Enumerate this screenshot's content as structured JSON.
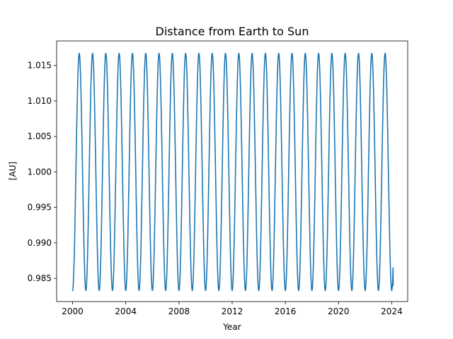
{
  "chart_data": {
    "type": "line",
    "title": "Distance from Earth to Sun",
    "xlabel": "Year",
    "ylabel": "[AU]",
    "xlim": [
      1998.8,
      2025.2
    ],
    "ylim": [
      0.98173,
      1.01845
    ],
    "xticks": [
      2000,
      2004,
      2008,
      2012,
      2016,
      2020,
      2024
    ],
    "xtick_labels": [
      "2000",
      "2004",
      "2008",
      "2012",
      "2016",
      "2020",
      "2024"
    ],
    "yticks": [
      0.985,
      0.99,
      0.995,
      1.0,
      1.005,
      1.01,
      1.015
    ],
    "ytick_labels": [
      "0.985",
      "0.990",
      "0.995",
      "1.000",
      "1.005",
      "1.010",
      "1.015"
    ],
    "grid": false,
    "legend": "none",
    "series": [
      {
        "color": "#1f77b4",
        "x_start": 2000.0,
        "x_end": 2024.1,
        "perihelion_value": 0.98329,
        "aphelion_value": 1.01671,
        "period_years": 1.0,
        "first_minimum_year": 2000.0,
        "last_value": 0.984
      }
    ]
  }
}
